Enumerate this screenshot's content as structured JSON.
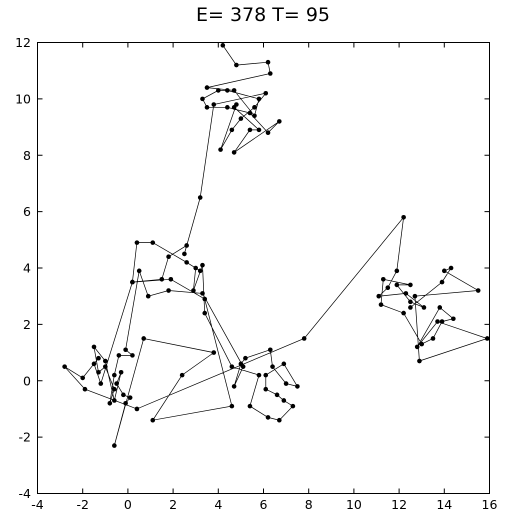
{
  "chart_data": {
    "type": "line",
    "title": "E= 378 T= 95",
    "xlabel": "",
    "ylabel": "",
    "xlim": [
      -4,
      16
    ],
    "ylim": [
      -4,
      12
    ],
    "grid": false,
    "x_ticks": [
      -4,
      -2,
      0,
      2,
      4,
      6,
      8,
      10,
      12,
      14,
      16
    ],
    "y_ticks": [
      -4,
      -2,
      0,
      2,
      4,
      6,
      8,
      10,
      12
    ],
    "marker": "dot",
    "line_color": "#000000",
    "point_color": "#000000",
    "points": [
      [
        4.2,
        11.9
      ],
      [
        4.8,
        11.2
      ],
      [
        6.2,
        11.3
      ],
      [
        6.3,
        10.9
      ],
      [
        3.5,
        10.4
      ],
      [
        4.7,
        10.3
      ],
      [
        5.6,
        9.4
      ],
      [
        5.8,
        10.0
      ],
      [
        4.4,
        10.3
      ],
      [
        4.0,
        10.3
      ],
      [
        3.3,
        10.0
      ],
      [
        3.5,
        9.7
      ],
      [
        4.4,
        9.7
      ],
      [
        5.4,
        9.5
      ],
      [
        6.2,
        8.8
      ],
      [
        6.7,
        9.2
      ],
      [
        4.7,
        8.1
      ],
      [
        5.4,
        8.9
      ],
      [
        5.8,
        8.9
      ],
      [
        4.7,
        9.7
      ],
      [
        4.8,
        9.8
      ],
      [
        4.1,
        8.2
      ],
      [
        4.6,
        8.9
      ],
      [
        5.0,
        9.3
      ],
      [
        5.6,
        9.7
      ],
      [
        6.1,
        10.2
      ],
      [
        3.8,
        9.8
      ],
      [
        3.2,
        6.5
      ],
      [
        2.5,
        4.5
      ],
      [
        2.6,
        4.8
      ],
      [
        1.8,
        4.4
      ],
      [
        1.5,
        3.6
      ],
      [
        0.2,
        3.5
      ],
      [
        0.4,
        4.9
      ],
      [
        1.1,
        4.9
      ],
      [
        2.6,
        4.2
      ],
      [
        3.2,
        3.9
      ],
      [
        3.0,
        4.0
      ],
      [
        2.9,
        3.2
      ],
      [
        3.3,
        4.1
      ],
      [
        3.4,
        2.4
      ],
      [
        4.6,
        0.5
      ],
      [
        5.8,
        0.2
      ],
      [
        5.4,
        -0.9
      ],
      [
        6.2,
        -1.3
      ],
      [
        6.7,
        -1.4
      ],
      [
        7.3,
        -0.9
      ],
      [
        6.9,
        -0.7
      ],
      [
        6.6,
        -0.5
      ],
      [
        6.1,
        -0.3
      ],
      [
        6.1,
        0.2
      ],
      [
        6.9,
        0.6
      ],
      [
        7.5,
        -0.2
      ],
      [
        7.0,
        -0.1
      ],
      [
        6.4,
        0.5
      ],
      [
        6.3,
        1.1
      ],
      [
        5.2,
        0.8
      ],
      [
        5.0,
        0.6
      ],
      [
        4.7,
        -0.2
      ],
      [
        5.1,
        0.5
      ],
      [
        3.3,
        3.1
      ],
      [
        1.8,
        3.2
      ],
      [
        0.9,
        3.0
      ],
      [
        0.5,
        3.9
      ],
      [
        -0.1,
        1.1
      ],
      [
        0.2,
        0.9
      ],
      [
        -0.4,
        0.9
      ],
      [
        -0.6,
        0.2
      ],
      [
        -0.8,
        -0.8
      ],
      [
        -0.6,
        -0.3
      ],
      [
        -1.0,
        0.5
      ],
      [
        -1.3,
        0.3
      ],
      [
        -1.5,
        1.2
      ],
      [
        -1.0,
        0.7
      ],
      [
        -0.6,
        -0.7
      ],
      [
        -0.3,
        0.3
      ],
      [
        -0.5,
        -0.1
      ],
      [
        -0.2,
        -0.5
      ],
      [
        0.1,
        -0.6
      ],
      [
        -0.1,
        -0.8
      ],
      [
        -0.6,
        -2.3
      ],
      [
        0.7,
        1.5
      ],
      [
        3.8,
        1.0
      ],
      [
        2.4,
        0.2
      ],
      [
        1.1,
        -1.4
      ],
      [
        4.6,
        -0.9
      ],
      [
        3.4,
        2.9
      ],
      [
        1.9,
        3.6
      ],
      [
        0.2,
        3.5
      ],
      [
        -1.2,
        -0.1
      ],
      [
        -1.5,
        0.6
      ],
      [
        -1.3,
        0.8
      ],
      [
        -2.0,
        0.1
      ],
      [
        -2.8,
        0.5
      ],
      [
        -1.9,
        -0.3
      ],
      [
        0.4,
        -1.0
      ],
      [
        7.8,
        1.5
      ],
      [
        12.2,
        5.8
      ],
      [
        11.9,
        3.9
      ],
      [
        11.5,
        3.3
      ],
      [
        11.1,
        3.0
      ],
      [
        12.3,
        3.1
      ],
      [
        13.1,
        2.6
      ],
      [
        12.5,
        2.8
      ],
      [
        11.9,
        3.4
      ],
      [
        12.5,
        3.4
      ],
      [
        11.3,
        3.6
      ],
      [
        11.2,
        2.7
      ],
      [
        12.2,
        2.4
      ],
      [
        13.0,
        1.3
      ],
      [
        13.5,
        1.5
      ],
      [
        13.9,
        2.1
      ],
      [
        14.4,
        2.2
      ],
      [
        13.8,
        2.6
      ],
      [
        12.8,
        1.2
      ],
      [
        13.7,
        2.1
      ],
      [
        15.9,
        1.5
      ],
      [
        12.9,
        0.7
      ],
      [
        12.7,
        3.0
      ],
      [
        15.5,
        3.2
      ],
      [
        14.0,
        3.9
      ],
      [
        14.3,
        4.0
      ],
      [
        13.9,
        3.5
      ],
      [
        12.5,
        2.6
      ]
    ]
  }
}
